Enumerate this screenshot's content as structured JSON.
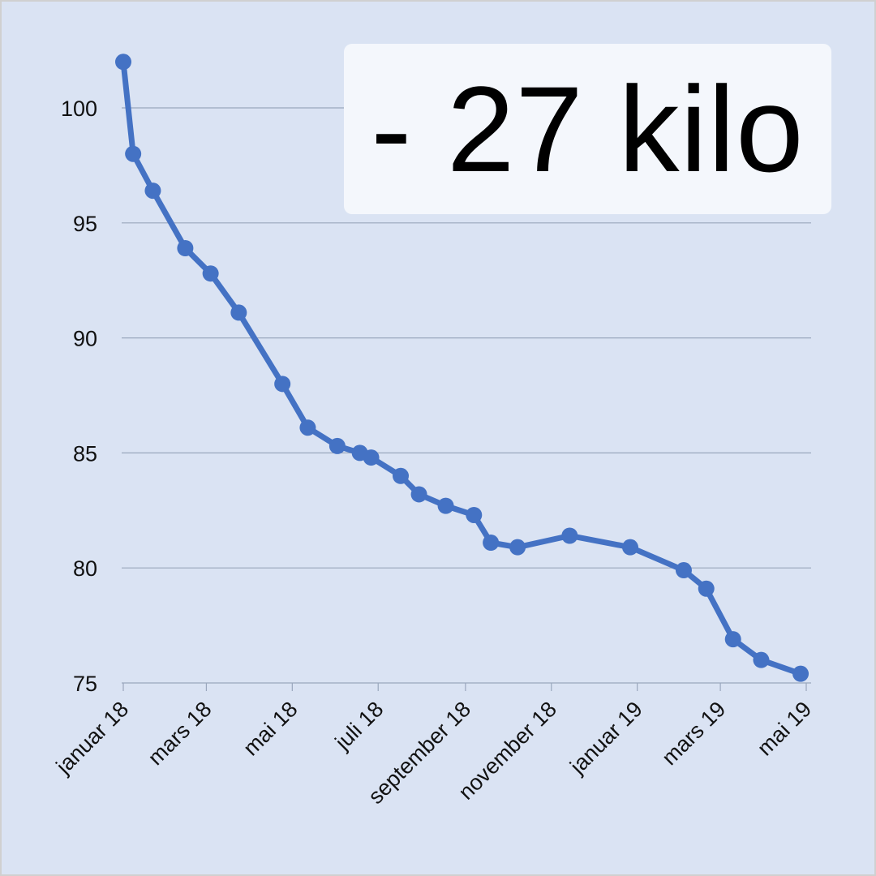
{
  "badge": {
    "text": "- 27 kilo"
  },
  "colors": {
    "background": "#dae3f3",
    "line": "#4472c4",
    "grid": "#9aa7bd",
    "badge_bg": "#f4f7fc"
  },
  "chart_data": {
    "type": "line",
    "title": "",
    "xlabel": "",
    "ylabel": "",
    "ylim": [
      75,
      102
    ],
    "yticks": [
      100,
      95,
      90,
      85,
      80,
      75
    ],
    "grid": "horizontal",
    "legend": "none",
    "x_tick_labels": [
      "januar 18",
      "mars 18",
      "mai 18",
      "juli 18",
      "september 18",
      "november 18",
      "januar 19",
      "mars 19",
      "mai 19"
    ],
    "x_tick_dates": [
      "2018-01-01",
      "2018-03-01",
      "2018-05-01",
      "2018-07-01",
      "2018-09-01",
      "2018-11-01",
      "2019-01-01",
      "2019-03-01",
      "2019-05-01"
    ],
    "series": [
      {
        "values": [
          {
            "x": "2018-01-01",
            "y": 102.0
          },
          {
            "x": "2018-01-08",
            "y": 98.0
          },
          {
            "x": "2018-01-22",
            "y": 96.4
          },
          {
            "x": "2018-02-14",
            "y": 93.9
          },
          {
            "x": "2018-03-04",
            "y": 92.8
          },
          {
            "x": "2018-03-24",
            "y": 91.1
          },
          {
            "x": "2018-04-24",
            "y": 88.0
          },
          {
            "x": "2018-05-12",
            "y": 86.1
          },
          {
            "x": "2018-06-02",
            "y": 85.3
          },
          {
            "x": "2018-06-18",
            "y": 85.0
          },
          {
            "x": "2018-06-26",
            "y": 84.8
          },
          {
            "x": "2018-07-17",
            "y": 84.0
          },
          {
            "x": "2018-07-30",
            "y": 83.2
          },
          {
            "x": "2018-08-18",
            "y": 82.7
          },
          {
            "x": "2018-09-07",
            "y": 82.3
          },
          {
            "x": "2018-09-19",
            "y": 81.1
          },
          {
            "x": "2018-10-08",
            "y": 80.9
          },
          {
            "x": "2018-11-14",
            "y": 81.4
          },
          {
            "x": "2018-12-27",
            "y": 80.9
          },
          {
            "x": "2019-02-03",
            "y": 79.9
          },
          {
            "x": "2019-02-19",
            "y": 79.1
          },
          {
            "x": "2019-03-10",
            "y": 76.9
          },
          {
            "x": "2019-03-30",
            "y": 76.0
          },
          {
            "x": "2019-04-27",
            "y": 75.4
          }
        ]
      }
    ]
  }
}
